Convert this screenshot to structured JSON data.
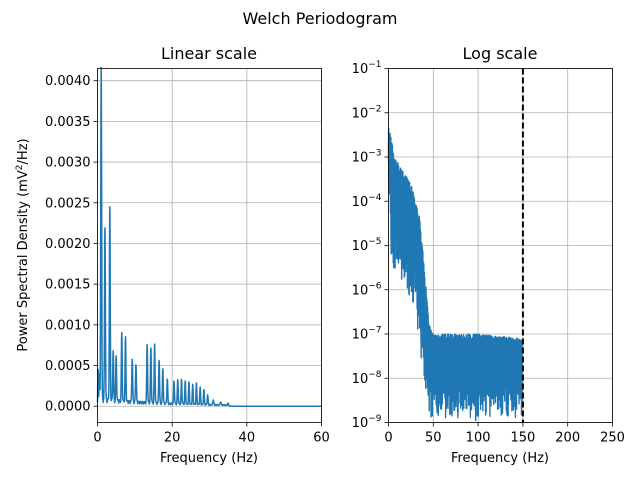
{
  "chart_data": {
    "suptitle": "Welch Periodogram",
    "panels": [
      {
        "type": "line",
        "title": "Linear scale",
        "xlabel": "Frequency (Hz)",
        "ylabel_main": "Power Spectral Density (mV",
        "ylabel_sup": "2",
        "ylabel_tail": "/Hz)",
        "xlim": [
          0,
          60
        ],
        "ylim": [
          -0.0002,
          0.00415
        ],
        "xticks": [
          0,
          20,
          40,
          60
        ],
        "xtick_labels": [
          "0",
          "20",
          "40",
          "60"
        ],
        "yticks": [
          0,
          0.0005,
          0.001,
          0.0015,
          0.002,
          0.0025,
          0.003,
          0.0035,
          0.004
        ],
        "ytick_labels": [
          "0.0000",
          "0.0005",
          "0.0010",
          "0.0015",
          "0.0020",
          "0.0025",
          "0.0030",
          "0.0035",
          "0.0040"
        ],
        "grid": true,
        "series_color": "#1f77b4",
        "peaks": [
          {
            "f": 1.0,
            "p": 0.00395
          },
          {
            "f": 2.0,
            "p": 0.00215
          },
          {
            "f": 3.3,
            "p": 0.00236
          },
          {
            "f": 4.2,
            "p": 0.00062
          },
          {
            "f": 5.0,
            "p": 0.00055
          },
          {
            "f": 6.5,
            "p": 0.00084
          },
          {
            "f": 7.5,
            "p": 0.00078
          },
          {
            "f": 9.3,
            "p": 0.00054
          },
          {
            "f": 10.3,
            "p": 0.00048
          },
          {
            "f": 13.3,
            "p": 0.00072
          },
          {
            "f": 14.3,
            "p": 0.00068
          },
          {
            "f": 15.3,
            "p": 0.00072
          },
          {
            "f": 16.5,
            "p": 0.00054
          },
          {
            "f": 17.5,
            "p": 0.00044
          },
          {
            "f": 18.7,
            "p": 0.0003
          },
          {
            "f": 20.5,
            "p": 0.00028
          },
          {
            "f": 21.5,
            "p": 0.0003
          },
          {
            "f": 22.5,
            "p": 0.0003
          },
          {
            "f": 23.5,
            "p": 0.00028
          },
          {
            "f": 24.5,
            "p": 0.00027
          },
          {
            "f": 25.5,
            "p": 0.00024
          },
          {
            "f": 26.5,
            "p": 0.00026
          },
          {
            "f": 27.5,
            "p": 0.00021
          },
          {
            "f": 28.5,
            "p": 0.00018
          },
          {
            "f": 29.5,
            "p": 0.00012
          },
          {
            "f": 31.0,
            "p": 6e-05
          },
          {
            "f": 33.0,
            "p": 4e-05
          },
          {
            "f": 35.0,
            "p": 3e-05
          }
        ]
      },
      {
        "type": "line",
        "title": "Log scale",
        "xlabel": "Frequency (Hz)",
        "xlim": [
          0,
          250
        ],
        "yscale": "log",
        "ylim_exp": [
          -9,
          -1
        ],
        "xticks": [
          0,
          50,
          100,
          150,
          200,
          250
        ],
        "xtick_labels": [
          "0",
          "50",
          "100",
          "150",
          "200",
          "250"
        ],
        "ytick_exps": [
          -9,
          -8,
          -7,
          -6,
          -5,
          -4,
          -3,
          -2,
          -1
        ],
        "ytick_base": "10",
        "ytick_exp_labels": [
          "−9",
          "−8",
          "−7",
          "−6",
          "−5",
          "−4",
          "−3",
          "−2",
          "−1"
        ],
        "grid": true,
        "series_color": "#1f77b4",
        "nyquist_line": {
          "x": 150,
          "style": "dashed",
          "color": "#000000"
        },
        "envelope": [
          {
            "f": 0,
            "hi": -2.35,
            "lo": -4.3
          },
          {
            "f": 3,
            "hi": -2.5,
            "lo": -5.5
          },
          {
            "f": 6,
            "hi": -3.0,
            "lo": -5.8
          },
          {
            "f": 10,
            "hi": -3.1,
            "lo": -5.9
          },
          {
            "f": 15,
            "hi": -3.3,
            "lo": -6.0
          },
          {
            "f": 20,
            "hi": -3.4,
            "lo": -6.2
          },
          {
            "f": 25,
            "hi": -3.6,
            "lo": -6.5
          },
          {
            "f": 30,
            "hi": -4.0,
            "lo": -6.8
          },
          {
            "f": 35,
            "hi": -4.3,
            "lo": -7.3
          },
          {
            "f": 40,
            "hi": -5.5,
            "lo": -8.5
          },
          {
            "f": 45,
            "hi": -6.7,
            "lo": -9
          },
          {
            "f": 50,
            "hi": -7.0,
            "lo": -9
          },
          {
            "f": 60,
            "hi": -7.0,
            "lo": -9
          },
          {
            "f": 100,
            "hi": -7.0,
            "lo": -9
          },
          {
            "f": 149,
            "hi": -7.1,
            "lo": -9
          }
        ]
      }
    ]
  }
}
